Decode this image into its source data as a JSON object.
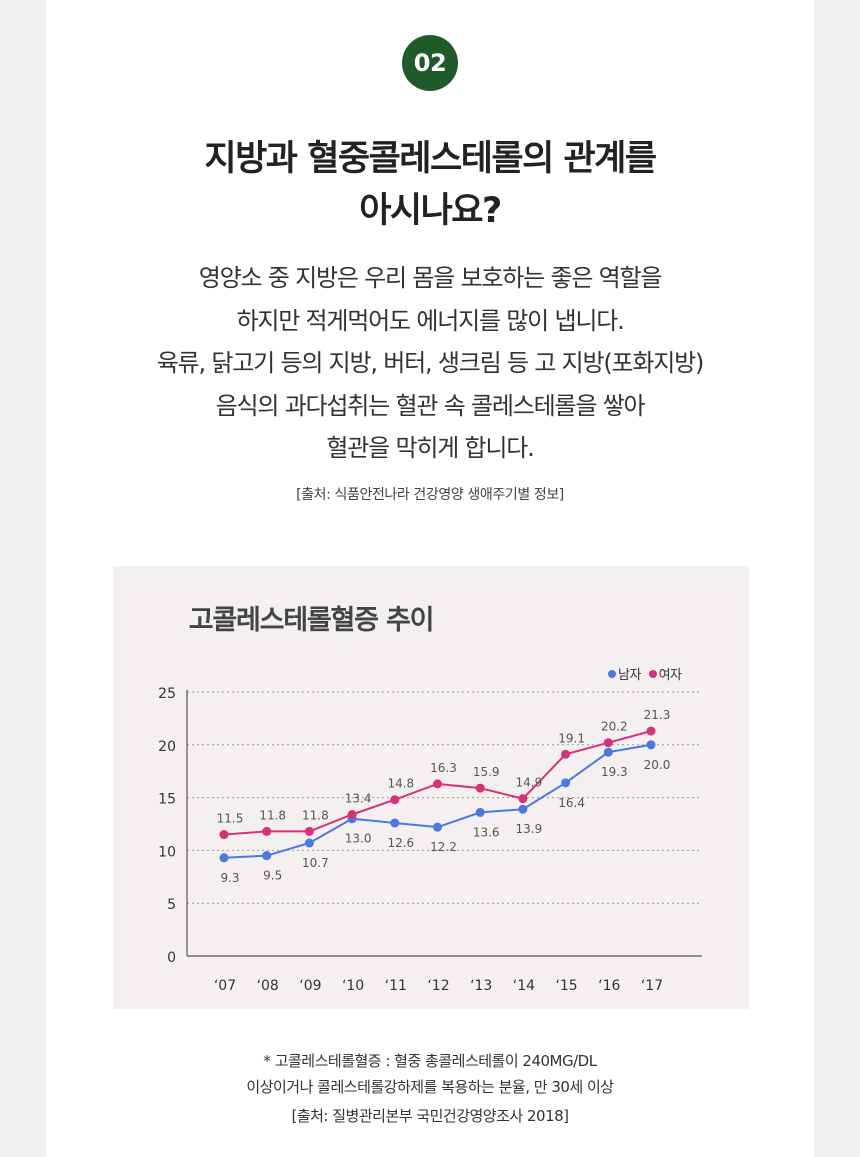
{
  "badge": "02",
  "title": [
    "지방과 혈중콜레스테롤의 관계를",
    "아시나요?"
  ],
  "body": [
    "영양소 중 지방은 우리 몸을 보호하는 좋은 역할을",
    "하지만 적게먹어도 에너지를 많이 냅니다.",
    "육류, 닭고기 등의 지방, 버터, 생크림 등 고 지방(포화지방)",
    "음식의 과다섭취는 혈관 속 콜레스테롤을 쌓아",
    "혈관을 막히게 합니다."
  ],
  "source_top": "[출처: 식품안전나라 건강영양 생애주기별 정보]",
  "chart_data": {
    "type": "line",
    "title": "고콜레스테롤혈증 추이",
    "categories": [
      "‘07",
      "‘08",
      "‘09",
      "‘10",
      "‘11",
      "‘12",
      "‘13",
      "‘14",
      "‘15",
      "‘16",
      "‘17"
    ],
    "ylim": [
      0,
      25
    ],
    "yticks": [
      0,
      5,
      10,
      15,
      20,
      25
    ],
    "grid": true,
    "legend_position": "top-right",
    "series": [
      {
        "name": "남자",
        "color": "#4a78e0",
        "values": [
          9.3,
          9.5,
          10.7,
          13.0,
          12.6,
          12.2,
          13.6,
          13.9,
          16.4,
          19.3,
          20.0
        ]
      },
      {
        "name": "여자",
        "color": "#d8307a",
        "values": [
          11.5,
          11.8,
          11.8,
          13.4,
          14.8,
          16.3,
          15.9,
          14.9,
          19.1,
          20.2,
          21.3
        ]
      }
    ]
  },
  "notes": [
    "* 고콜레스테롤혈증 : 혈중 총콜레스테롤이 240MG/DL",
    "이상이거나 콜레스테롤강하제를 복용하는 분율, 만 30세 이상",
    "[출처: 질병관리본부 국민건강영양조사 2018]"
  ]
}
